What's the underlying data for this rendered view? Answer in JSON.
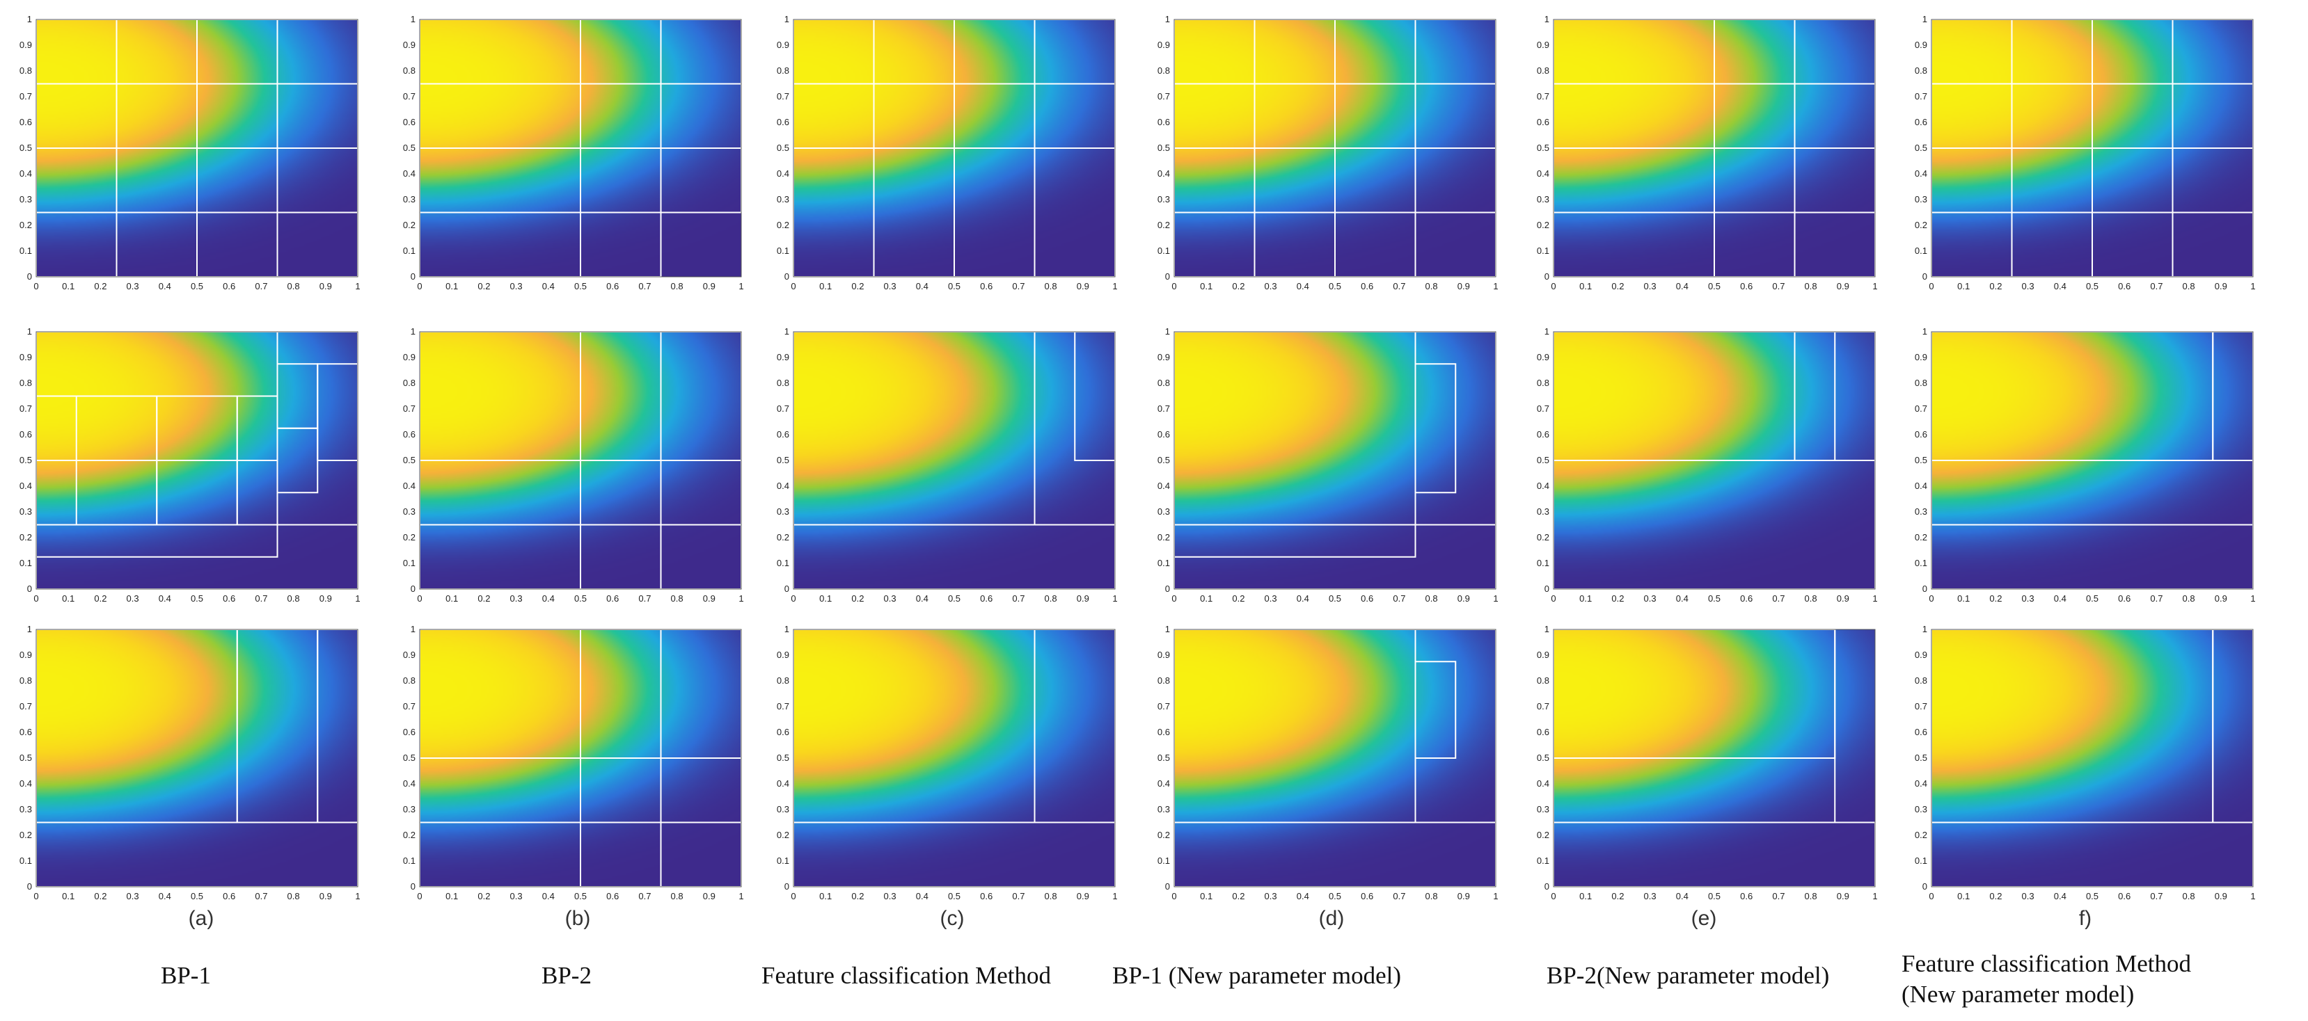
{
  "figure": {
    "letters": [
      "(a)",
      "(b)",
      "(c)",
      "(d)",
      "(e)",
      "f)"
    ],
    "method_labels": [
      {
        "lines": [
          "BP-1"
        ]
      },
      {
        "lines": [
          "BP-2"
        ]
      },
      {
        "lines": [
          "Feature classification Method"
        ]
      },
      {
        "lines": [
          "BP-1 (New  parameter model)"
        ]
      },
      {
        "lines": [
          "BP-2(New  parameter model)"
        ]
      },
      {
        "lines": [
          "Feature classification Method",
          "(New  parameter model)"
        ]
      }
    ]
  },
  "chart_data": {
    "type": "heatmap",
    "description_of_grid": "6 columns (methods) x 3 rows (refinement levels); each panel shows a 2-D field with adaptive mesh cells overlaid",
    "x_ticks": [
      "0",
      "0.1",
      "0.2",
      "0.3",
      "0.4",
      "0.5",
      "0.6",
      "0.7",
      "0.8",
      "0.9",
      "1"
    ],
    "y_ticks": [
      "0",
      "0.1",
      "0.2",
      "0.3",
      "0.4",
      "0.5",
      "0.6",
      "0.7",
      "0.8",
      "0.9",
      "1"
    ],
    "xlim": [
      0,
      1
    ],
    "ylim": [
      0,
      1
    ],
    "field": {
      "peak_x": 0.0,
      "peak_y": 0.77,
      "falloff_x": 0.75,
      "falloff_y": 0.45
    },
    "colormap": [
      "#3e2a8c",
      "#2f6fd8",
      "#20a8de",
      "#22c39a",
      "#99cc35",
      "#f6b13a",
      "#f9d51e",
      "#f8f010"
    ],
    "columns": [
      {
        "method": "BP-1",
        "rows": [
          {
            "cells": [
              [
                0,
                0.25,
                1,
                1
              ],
              [
                0,
                0.5,
                1,
                1
              ],
              [
                0,
                0.75,
                1,
                1
              ],
              [
                0,
                0,
                0.25,
                1
              ],
              [
                0.25,
                0,
                0.5,
                1
              ],
              [
                0,
                0,
                0.5,
                0.25
              ],
              [
                0.5,
                0,
                0.75,
                1
              ],
              [
                0.75,
                0,
                1,
                1
              ]
            ]
          },
          {
            "cells": [
              [
                0,
                0,
                1,
                0.25
              ],
              [
                0,
                0.25,
                0.75,
                0.5
              ],
              [
                0,
                0.5,
                0.75,
                0.75
              ],
              [
                0,
                0.75,
                0.75,
                1
              ],
              [
                0.75,
                0.25,
                1,
                1
              ],
              [
                0,
                0.125,
                0.75,
                0.25
              ],
              [
                0.125,
                0.25,
                0.375,
                0.75
              ],
              [
                0.375,
                0.25,
                0.625,
                0.75
              ],
              [
                0.625,
                0.25,
                0.75,
                0.75
              ],
              [
                0.75,
                0.375,
                0.875,
                0.625
              ],
              [
                0.75,
                0.625,
                0.875,
                0.875
              ],
              [
                0.875,
                0.5,
                1,
                0.875
              ]
            ]
          },
          {
            "cells": [
              [
                0,
                0,
                1,
                0.25
              ],
              [
                0,
                0.25,
                0.625,
                1
              ],
              [
                0.625,
                0.25,
                0.875,
                1
              ],
              [
                0.875,
                0.25,
                1,
                1
              ]
            ]
          }
        ]
      },
      {
        "method": "BP-2",
        "rows": [
          {
            "cells": [
              [
                0,
                0.25,
                1,
                1
              ],
              [
                0,
                0.5,
                1,
                1
              ],
              [
                0,
                0.75,
                1,
                1
              ],
              [
                0,
                0,
                0.5,
                1
              ],
              [
                0.5,
                0,
                0.75,
                1
              ],
              [
                0.75,
                0.5,
                1,
                1
              ]
            ]
          },
          {
            "cells": [
              [
                0,
                0.25,
                1,
                1
              ],
              [
                0,
                0.5,
                1,
                1
              ],
              [
                0,
                0,
                0.5,
                1
              ],
              [
                0.5,
                0,
                0.75,
                1
              ],
              [
                0.75,
                0,
                1,
                1
              ]
            ]
          },
          {
            "cells": [
              [
                0,
                0.25,
                1,
                1
              ],
              [
                0,
                0.5,
                1,
                1
              ],
              [
                0,
                0,
                0.5,
                1
              ],
              [
                0.5,
                0,
                0.75,
                1
              ],
              [
                0.75,
                0,
                1,
                1
              ]
            ]
          }
        ]
      },
      {
        "method": "Feature classification Method",
        "rows": [
          {
            "cells": [
              [
                0,
                0,
                1,
                0.5
              ],
              [
                0,
                0.5,
                1,
                0.75
              ],
              [
                0,
                0.75,
                1,
                1
              ],
              [
                0,
                0,
                0.25,
                1
              ],
              [
                0.25,
                0,
                0.5,
                1
              ],
              [
                0.5,
                0,
                0.75,
                1
              ],
              [
                0.75,
                0,
                1,
                1
              ]
            ]
          },
          {
            "cells": [
              [
                0,
                0,
                1,
                0.25
              ],
              [
                0,
                0.25,
                0.75,
                1
              ],
              [
                0.75,
                0.25,
                1,
                1
              ],
              [
                0.875,
                0.5,
                1,
                1
              ]
            ]
          },
          {
            "cells": [
              [
                0,
                0,
                1,
                0.25
              ],
              [
                0,
                0.25,
                0.75,
                1
              ],
              [
                0.75,
                0.25,
                1,
                1
              ]
            ]
          }
        ]
      },
      {
        "method": "BP-1 (New parameter model)",
        "rows": [
          {
            "cells": [
              [
                0,
                0,
                1,
                0.25
              ],
              [
                0,
                0.25,
                1,
                0.5
              ],
              [
                0,
                0.5,
                1,
                0.75
              ],
              [
                0,
                0.75,
                1,
                1
              ],
              [
                0,
                0,
                0.25,
                1
              ],
              [
                0.25,
                0,
                0.5,
                1
              ],
              [
                0.5,
                0,
                0.75,
                1
              ],
              [
                0.75,
                0,
                1,
                1
              ]
            ]
          },
          {
            "cells": [
              [
                0,
                0,
                1,
                0.25
              ],
              [
                0,
                0.25,
                0.75,
                1
              ],
              [
                0.75,
                0.25,
                1,
                1
              ],
              [
                0,
                0.125,
                0.75,
                0.25
              ],
              [
                0.75,
                0.375,
                0.875,
                0.875
              ]
            ]
          },
          {
            "cells": [
              [
                0,
                0,
                1,
                0.25
              ],
              [
                0,
                0.25,
                0.75,
                1
              ],
              [
                0.75,
                0.25,
                1,
                1
              ],
              [
                0.75,
                0.5,
                0.875,
                0.875
              ]
            ]
          }
        ]
      },
      {
        "method": "BP-2(New parameter model)",
        "rows": [
          {
            "cells": [
              [
                0,
                0,
                1,
                0.25
              ],
              [
                0,
                0.25,
                1,
                0.5
              ],
              [
                0,
                0.5,
                1,
                0.75
              ],
              [
                0,
                0.75,
                1,
                1
              ],
              [
                0,
                0,
                0.5,
                1
              ],
              [
                0.5,
                0,
                0.75,
                1
              ],
              [
                0.75,
                0.5,
                1,
                1
              ]
            ]
          },
          {
            "cells": [
              [
                0,
                0,
                1,
                0.5
              ],
              [
                0,
                0.5,
                0.75,
                1
              ],
              [
                0.75,
                0.5,
                1,
                1
              ],
              [
                0.875,
                0.5,
                1,
                1
              ]
            ]
          },
          {
            "cells": [
              [
                0,
                0,
                1,
                0.25
              ],
              [
                0,
                0.25,
                0.875,
                1
              ],
              [
                0,
                0.5,
                0.875,
                1
              ]
            ]
          }
        ]
      },
      {
        "method": "Feature classification Method (New parameter model)",
        "rows": [
          {
            "cells": [
              [
                0,
                0,
                1,
                0.25
              ],
              [
                0,
                0.25,
                1,
                0.5
              ],
              [
                0,
                0.5,
                1,
                0.75
              ],
              [
                0,
                0.75,
                1,
                1
              ],
              [
                0,
                0,
                0.25,
                1
              ],
              [
                0.25,
                0,
                0.5,
                1
              ],
              [
                0.5,
                0,
                0.75,
                1
              ],
              [
                0.75,
                0,
                1,
                1
              ]
            ]
          },
          {
            "cells": [
              [
                0,
                0,
                1,
                0.25
              ],
              [
                0,
                0.25,
                1,
                0.5
              ],
              [
                0,
                0.5,
                0.875,
                1
              ],
              [
                0.875,
                0.5,
                1,
                1
              ]
            ]
          },
          {
            "cells": [
              [
                0,
                0,
                1,
                0.25
              ],
              [
                0,
                0.25,
                0.875,
                1
              ],
              [
                0.875,
                0.25,
                1,
                1
              ]
            ]
          }
        ]
      }
    ]
  }
}
